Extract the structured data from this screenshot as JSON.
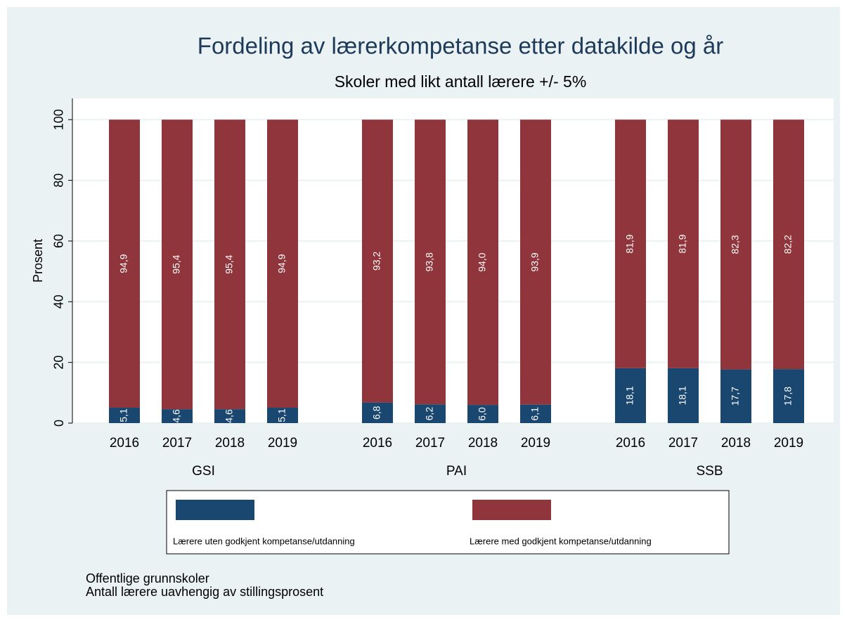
{
  "chart_data": {
    "type": "stacked_bar",
    "title": "Fordeling av lærerkompetanse etter datakilde og år",
    "subtitle": "Skoler med likt antall lærere +/- 5%",
    "y_label": "Prosent",
    "groups": [
      "GSI",
      "PAI",
      "SSB"
    ],
    "categories": [
      "2016",
      "2017",
      "2018",
      "2019"
    ],
    "series": [
      {
        "name": "Lærere uten godkjent kompetanse/utdanning",
        "color": "#1a476f",
        "values": [
          [
            5.1,
            4.6,
            4.6,
            5.1
          ],
          [
            6.8,
            6.2,
            6.0,
            6.1
          ],
          [
            18.1,
            18.1,
            17.7,
            17.8
          ]
        ],
        "value_labels": [
          [
            "5,1",
            "4,6",
            "4,6",
            "5,1"
          ],
          [
            "6,8",
            "6,2",
            "6,0",
            "6,1"
          ],
          [
            "18,1",
            "18,1",
            "17,7",
            "17,8"
          ]
        ]
      },
      {
        "name": "Lærere med godkjent kompetanse/utdanning",
        "color": "#90353b",
        "values": [
          [
            94.9,
            95.4,
            95.4,
            94.9
          ],
          [
            93.2,
            93.8,
            94.0,
            93.9
          ],
          [
            81.9,
            81.9,
            82.3,
            82.2
          ]
        ],
        "value_labels": [
          [
            "94,9",
            "95,4",
            "95,4",
            "94,9"
          ],
          [
            "93,2",
            "93,8",
            "94,0",
            "93,9"
          ],
          [
            "81,9",
            "81,9",
            "82,3",
            "82,2"
          ]
        ]
      }
    ],
    "ylim": [
      0,
      107
    ],
    "yticks": [
      0,
      20,
      40,
      60,
      80,
      100
    ],
    "grid": true,
    "legend": "bottom",
    "notes": [
      "Offentlige grunnskoler",
      "Antall lærere uavhengig av stillingsprosent"
    ]
  }
}
